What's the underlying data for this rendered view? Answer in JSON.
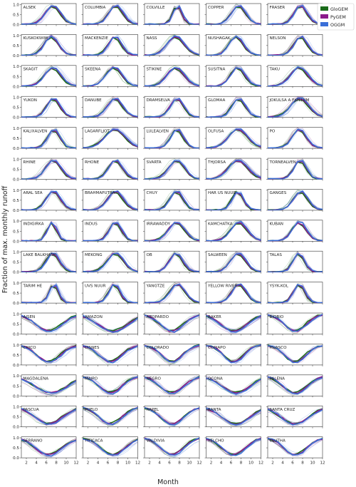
{
  "chart_data": {
    "type": "line",
    "ylabel": "Fraction of max. monthly runoff",
    "xlabel": "Month",
    "xlim": [
      1,
      12
    ],
    "ylim": [
      0,
      1.05
    ],
    "x_ticks": [
      "2",
      "4",
      "6",
      "8",
      "10",
      "12"
    ],
    "y_ticks": [
      "0.0",
      "0.5",
      "1.0"
    ],
    "grid": false,
    "legend_position": "top-right",
    "models": [
      {
        "name": "GloGEM",
        "color": "#1a6b1a"
      },
      {
        "name": "PyGEM",
        "color": "#8b1a8b"
      },
      {
        "name": "OGGM",
        "color": "#3a6fd8"
      }
    ],
    "panels": [
      {
        "name": "ALSEK",
        "group": "north",
        "peak": 7.3,
        "width": 1.5
      },
      {
        "name": "COLUMBIA",
        "group": "north",
        "peak": 7.6,
        "width": 1.4
      },
      {
        "name": "COLVILLE",
        "group": "north",
        "peak": 7.6,
        "width": 0.9
      },
      {
        "name": "COPPER",
        "group": "north",
        "peak": 7.5,
        "width": 1.4
      },
      {
        "name": "FRASER",
        "group": "north",
        "peak": 7.6,
        "width": 1.3
      },
      {
        "name": "KUSKOKWIM",
        "group": "north",
        "peak": 7.0,
        "width": 1.4
      },
      {
        "name": "MACKENZIE",
        "group": "north",
        "peak": 7.4,
        "width": 1.3
      },
      {
        "name": "NASS",
        "group": "north",
        "peak": 7.2,
        "width": 1.7
      },
      {
        "name": "NUSHAGAK",
        "group": "north",
        "peak": 7.0,
        "width": 1.4
      },
      {
        "name": "NELSON",
        "group": "north",
        "peak": 7.6,
        "width": 1.3
      },
      {
        "name": "SKAGIT",
        "group": "north",
        "peak": 7.3,
        "width": 1.6
      },
      {
        "name": "SKEENA",
        "group": "north",
        "peak": 7.2,
        "width": 1.6
      },
      {
        "name": "STIKINE",
        "group": "north",
        "peak": 7.2,
        "width": 1.7
      },
      {
        "name": "SUSITNA",
        "group": "north",
        "peak": 7.3,
        "width": 1.4
      },
      {
        "name": "TAKU",
        "group": "north",
        "peak": 7.3,
        "width": 1.7
      },
      {
        "name": "YUKON",
        "group": "north",
        "peak": 7.4,
        "width": 1.3
      },
      {
        "name": "DANUBE",
        "group": "north",
        "peak": 7.4,
        "width": 1.5
      },
      {
        "name": "DRAMSELVA",
        "group": "north",
        "peak": 7.5,
        "width": 1.3
      },
      {
        "name": "GLOMAA",
        "group": "north",
        "peak": 7.5,
        "width": 1.3
      },
      {
        "name": "JOKULSA A FJOLLUM",
        "group": "north",
        "peak": 7.4,
        "width": 1.8
      },
      {
        "name": "KALIXALVEN",
        "group": "north",
        "peak": 7.5,
        "width": 1.2
      },
      {
        "name": "LAGARFLJOT",
        "group": "north",
        "peak": 7.4,
        "width": 2.0
      },
      {
        "name": "LULEALVEN",
        "group": "north",
        "peak": 7.5,
        "width": 1.2
      },
      {
        "name": "OLFUSA",
        "group": "north",
        "peak": 7.4,
        "width": 1.9
      },
      {
        "name": "PO",
        "group": "north",
        "peak": 7.3,
        "width": 1.4
      },
      {
        "name": "RHINE",
        "group": "north",
        "peak": 7.4,
        "width": 1.5
      },
      {
        "name": "RHONE",
        "group": "north",
        "peak": 7.5,
        "width": 1.4
      },
      {
        "name": "SVARTA",
        "group": "north",
        "peak": 7.4,
        "width": 1.6
      },
      {
        "name": "THJORSA",
        "group": "north",
        "peak": 7.4,
        "width": 1.9
      },
      {
        "name": "TORNEALVEN",
        "group": "north",
        "peak": 7.5,
        "width": 1.2
      },
      {
        "name": "ARAL SEA",
        "group": "north",
        "peak": 7.4,
        "width": 1.4
      },
      {
        "name": "BRAHMAPUTRA",
        "group": "north",
        "peak": 7.5,
        "width": 1.5
      },
      {
        "name": "CHUY",
        "group": "north",
        "peak": 7.4,
        "width": 1.3
      },
      {
        "name": "HAR US NUUR",
        "group": "north",
        "peak": 7.3,
        "width": 1.1
      },
      {
        "name": "GANGES",
        "group": "north",
        "peak": 7.6,
        "width": 1.4
      },
      {
        "name": "INDIGIRKA",
        "group": "north",
        "peak": 7.1,
        "width": 0.9
      },
      {
        "name": "INDUS",
        "group": "north",
        "peak": 7.5,
        "width": 1.2
      },
      {
        "name": "IRRAWADDY",
        "group": "north",
        "peak": 7.4,
        "width": 1.6
      },
      {
        "name": "KAMCHATKA",
        "group": "north",
        "peak": 7.6,
        "width": 1.6
      },
      {
        "name": "KUBAN",
        "group": "north",
        "peak": 7.3,
        "width": 1.4
      },
      {
        "name": "LAKE BALKHASH",
        "group": "north",
        "peak": 7.3,
        "width": 1.3
      },
      {
        "name": "MEKONG",
        "group": "north",
        "peak": 7.5,
        "width": 1.6
      },
      {
        "name": "OB",
        "group": "north",
        "peak": 7.3,
        "width": 1.3
      },
      {
        "name": "SALWEEN",
        "group": "north",
        "peak": 7.4,
        "width": 1.5
      },
      {
        "name": "TALAS",
        "group": "north",
        "peak": 7.2,
        "width": 1.1
      },
      {
        "name": "TARIM HE",
        "group": "north",
        "peak": 7.5,
        "width": 0.9
      },
      {
        "name": "UVS NUUR",
        "group": "north",
        "peak": 7.3,
        "width": 1.1
      },
      {
        "name": "YANGTZE",
        "group": "north",
        "peak": 7.6,
        "width": 1.5
      },
      {
        "name": "YELLOW RIVER",
        "group": "north",
        "peak": 7.6,
        "width": 1.4
      },
      {
        "name": "YSYK-KOL",
        "group": "north",
        "peak": 7.3,
        "width": 1.1
      },
      {
        "name": "AISEN",
        "group": "south",
        "trough": 6.5,
        "width": 2.6
      },
      {
        "name": "AMAZON",
        "group": "south",
        "trough": 7.0,
        "width": 3.0
      },
      {
        "name": "AZOPARDO",
        "group": "south",
        "trough": 6.5,
        "width": 2.4
      },
      {
        "name": "BAKER",
        "group": "south",
        "trough": 6.5,
        "width": 2.6
      },
      {
        "name": "BIOBIO",
        "group": "south",
        "trough": 6.5,
        "width": 2.2
      },
      {
        "name": "CHICO",
        "group": "south",
        "trough": 6.5,
        "width": 2.3
      },
      {
        "name": "CISNES",
        "group": "south",
        "trough": 6.5,
        "width": 2.3
      },
      {
        "name": "COLORADO",
        "group": "south",
        "trough": 6.5,
        "width": 2.1
      },
      {
        "name": "COPIAPO",
        "group": "south",
        "trough": 6.5,
        "width": 2.0
      },
      {
        "name": "HUASCO",
        "group": "south",
        "trough": 6.5,
        "width": 2.1
      },
      {
        "name": "MAGDALENA",
        "group": "south",
        "trough": 7.0,
        "width": 3.2
      },
      {
        "name": "MAIPO",
        "group": "south",
        "trough": 6.5,
        "width": 2.3
      },
      {
        "name": "NEGRO",
        "group": "south",
        "trough": 6.5,
        "width": 2.4
      },
      {
        "name": "OCONA",
        "group": "south",
        "trough": 7.0,
        "width": 2.8
      },
      {
        "name": "PALENA",
        "group": "south",
        "trough": 6.5,
        "width": 2.4
      },
      {
        "name": "PASCUA",
        "group": "south",
        "trough": 6.5,
        "width": 2.7
      },
      {
        "name": "PUELO",
        "group": "south",
        "trough": 6.5,
        "width": 2.3
      },
      {
        "name": "RAPEL",
        "group": "south",
        "trough": 6.5,
        "width": 2.3
      },
      {
        "name": "RANTA",
        "group": "south",
        "trough": 7.0,
        "width": 2.8
      },
      {
        "name": "SANTA CRUZ",
        "group": "south",
        "trough": 6.5,
        "width": 2.8
      },
      {
        "name": "SERRANO",
        "group": "south",
        "trough": 6.5,
        "width": 2.6
      },
      {
        "name": "TITICACA",
        "group": "south",
        "trough": 7.0,
        "width": 2.4
      },
      {
        "name": "VALDIVIA",
        "group": "south",
        "trough": 6.5,
        "width": 2.2
      },
      {
        "name": "YELCHO",
        "group": "south",
        "trough": 6.5,
        "width": 2.3
      },
      {
        "name": "CLUTHA",
        "group": "south",
        "trough": 6.5,
        "width": 2.2
      }
    ]
  }
}
